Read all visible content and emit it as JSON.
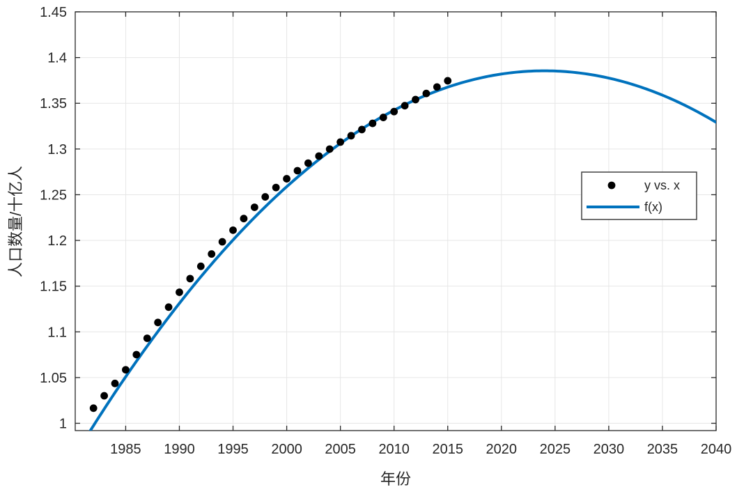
{
  "chart_data": {
    "type": "scatter",
    "title": "",
    "xlabel": "年份",
    "ylabel": "人口数量/十亿人",
    "xlim": [
      1980.3,
      2040
    ],
    "ylim": [
      0.992,
      1.45
    ],
    "grid": true,
    "xticks": [
      1985,
      1990,
      1995,
      2000,
      2005,
      2010,
      2015,
      2020,
      2025,
      2030,
      2035,
      2040
    ],
    "xtick_labels": [
      "1985",
      "1990",
      "1995",
      "2000",
      "2005",
      "2010",
      "2015",
      "2020",
      "2025",
      "2030",
      "2035",
      "2040"
    ],
    "ytick_values": [
      1,
      1.05,
      1.1,
      1.15,
      1.2,
      1.25,
      1.3,
      1.35,
      1.4,
      1.45
    ],
    "ytick_labels": [
      "1",
      "1.05",
      "1.1",
      "1.15",
      "1.2",
      "1.25",
      "1.3",
      "1.35",
      "1.4",
      "1.45"
    ],
    "legend": {
      "position": "right-middle",
      "entries": [
        {
          "label": "y vs. x",
          "type": "marker"
        },
        {
          "label": "f(x)",
          "type": "line"
        }
      ]
    },
    "series": [
      {
        "name": "y vs. x",
        "type": "scatter",
        "marker": "filled-circle",
        "color": "#000000",
        "x": [
          1982,
          1983,
          1984,
          1985,
          1986,
          1987,
          1988,
          1989,
          1990,
          1991,
          1992,
          1993,
          1994,
          1995,
          1996,
          1997,
          1998,
          1999,
          2000,
          2001,
          2002,
          2003,
          2004,
          2005,
          2006,
          2007,
          2008,
          2009,
          2010,
          2011,
          2012,
          2013,
          2014,
          2015
        ],
        "y": [
          1.01654,
          1.03008,
          1.04357,
          1.05851,
          1.07507,
          1.093,
          1.11026,
          1.12704,
          1.14333,
          1.15823,
          1.17171,
          1.18517,
          1.1985,
          1.21121,
          1.22389,
          1.23626,
          1.24761,
          1.25786,
          1.26743,
          1.27627,
          1.28453,
          1.29227,
          1.29988,
          1.30756,
          1.31448,
          1.32129,
          1.32802,
          1.3345,
          1.34091,
          1.34735,
          1.35404,
          1.36072,
          1.36782,
          1.37462
        ]
      },
      {
        "name": "f(x)",
        "type": "line",
        "color": "#0072BD",
        "width": 4,
        "fit": {
          "model": "quadratic",
          "vertex_x": 2024,
          "vertex_y": 1.3855,
          "a": -0.00022,
          "x_draw_range": [
            1981.0,
            2040
          ]
        }
      }
    ],
    "colors": {
      "fit_line": "#0072BD",
      "marker": "#000000",
      "grid": "#e6e6e6",
      "axis_box": "#262626",
      "legend_border": "#404040",
      "background": "#ffffff"
    }
  }
}
